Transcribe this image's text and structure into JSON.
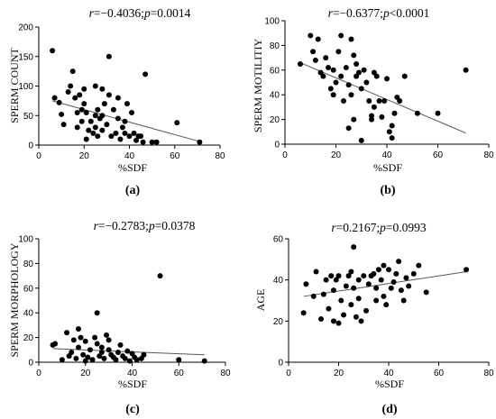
{
  "chart_data": [
    {
      "type": "scatter",
      "panel_label": "(a)",
      "stat": "r=−0.4036;p=0.0014",
      "stat_parts": {
        "r_value": "=−0.4036;",
        "p_value": "=0.0014"
      },
      "xlabel": "%SDF",
      "ylabel": "SPERM COUNT",
      "xlim": [
        0,
        80
      ],
      "ylim": [
        0,
        200
      ],
      "xticks": [
        "0",
        "20",
        "40",
        "60",
        "80"
      ],
      "yticks": [
        "0",
        "50",
        "100",
        "150",
        "200"
      ],
      "trend_line": [
        [
          6,
          75
        ],
        [
          71,
          6
        ]
      ],
      "points": [
        [
          6,
          160
        ],
        [
          7,
          80
        ],
        [
          9,
          72
        ],
        [
          10,
          52
        ],
        [
          11,
          35
        ],
        [
          13,
          90
        ],
        [
          14,
          100
        ],
        [
          15,
          125
        ],
        [
          16,
          80
        ],
        [
          17,
          55
        ],
        [
          17,
          30
        ],
        [
          18,
          85
        ],
        [
          19,
          60
        ],
        [
          19,
          40
        ],
        [
          20,
          70
        ],
        [
          20,
          95
        ],
        [
          21,
          55
        ],
        [
          21,
          10
        ],
        [
          22,
          25
        ],
        [
          23,
          40
        ],
        [
          24,
          20
        ],
        [
          25,
          100
        ],
        [
          25,
          50
        ],
        [
          25,
          30
        ],
        [
          26,
          60
        ],
        [
          26,
          15
        ],
        [
          27,
          45
        ],
        [
          28,
          95
        ],
        [
          28,
          50
        ],
        [
          28,
          25
        ],
        [
          29,
          70
        ],
        [
          30,
          35
        ],
        [
          31,
          150
        ],
        [
          31,
          85
        ],
        [
          32,
          15
        ],
        [
          33,
          60
        ],
        [
          34,
          20
        ],
        [
          35,
          80
        ],
        [
          35,
          45
        ],
        [
          36,
          10
        ],
        [
          37,
          30
        ],
        [
          38,
          40
        ],
        [
          38,
          20
        ],
        [
          39,
          70
        ],
        [
          40,
          15
        ],
        [
          41,
          55
        ],
        [
          42,
          20
        ],
        [
          43,
          8
        ],
        [
          44,
          15
        ],
        [
          45,
          15
        ],
        [
          46,
          5
        ],
        [
          47,
          120
        ],
        [
          50,
          5
        ],
        [
          52,
          5
        ],
        [
          61,
          38
        ],
        [
          71,
          5
        ]
      ]
    },
    {
      "type": "scatter",
      "panel_label": "(b)",
      "stat": "r=−0.6377;p<0.0001",
      "stat_parts": {
        "r_value": "=−0.6377;",
        "p_value": "<0.0001"
      },
      "xlabel": "%SDF",
      "ylabel": "SPERM MOTILITIY",
      "xlim": [
        0,
        80
      ],
      "ylim": [
        0,
        100
      ],
      "xticks": [
        "0",
        "20",
        "40",
        "60",
        "80"
      ],
      "yticks": [
        "0",
        "20",
        "40",
        "60",
        "80",
        "100"
      ],
      "trend_line": [
        [
          6,
          66
        ],
        [
          71,
          9
        ]
      ],
      "points": [
        [
          6,
          65
        ],
        [
          10,
          88
        ],
        [
          11,
          75
        ],
        [
          12,
          68
        ],
        [
          13,
          85
        ],
        [
          14,
          58
        ],
        [
          15,
          55
        ],
        [
          16,
          70
        ],
        [
          17,
          62
        ],
        [
          18,
          45
        ],
        [
          19,
          60
        ],
        [
          19,
          40
        ],
        [
          20,
          50
        ],
        [
          21,
          75
        ],
        [
          22,
          88
        ],
        [
          22,
          55
        ],
        [
          23,
          35
        ],
        [
          24,
          62
        ],
        [
          25,
          48
        ],
        [
          25,
          13
        ],
        [
          26,
          85
        ],
        [
          26,
          40
        ],
        [
          27,
          72
        ],
        [
          27,
          20
        ],
        [
          28,
          65
        ],
        [
          28,
          55
        ],
        [
          29,
          58
        ],
        [
          30,
          45
        ],
        [
          30,
          3
        ],
        [
          31,
          60
        ],
        [
          32,
          50
        ],
        [
          33,
          35
        ],
        [
          34,
          23
        ],
        [
          34,
          20
        ],
        [
          35,
          30
        ],
        [
          35,
          58
        ],
        [
          36,
          55
        ],
        [
          37,
          35
        ],
        [
          38,
          22
        ],
        [
          39,
          35
        ],
        [
          40,
          53
        ],
        [
          41,
          10
        ],
        [
          42,
          5
        ],
        [
          42,
          15
        ],
        [
          43,
          25
        ],
        [
          44,
          38
        ],
        [
          45,
          35
        ],
        [
          47,
          55
        ],
        [
          52,
          25
        ],
        [
          60,
          25
        ],
        [
          71,
          60
        ]
      ]
    },
    {
      "type": "scatter",
      "panel_label": "(c)",
      "stat": "r=−0.2783;p=0.0378",
      "stat_parts": {
        "r_value": "=−0.2783;",
        "p_value": "=0.0378"
      },
      "xlabel": "%SDF",
      "ylabel": "SPERM MORPHOLOGY",
      "xlim": [
        0,
        80
      ],
      "ylim": [
        0,
        100
      ],
      "xticks": [
        "0",
        "20",
        "40",
        "60",
        "80"
      ],
      "yticks": [
        "0",
        "20",
        "40",
        "60",
        "80",
        "100"
      ],
      "trend_line": [
        [
          6,
          11
        ],
        [
          71,
          6
        ]
      ],
      "points": [
        [
          6,
          14
        ],
        [
          7,
          15
        ],
        [
          10,
          2
        ],
        [
          12,
          24
        ],
        [
          13,
          5
        ],
        [
          14,
          8
        ],
        [
          15,
          18
        ],
        [
          16,
          3
        ],
        [
          17,
          27
        ],
        [
          17,
          12
        ],
        [
          18,
          20
        ],
        [
          19,
          6
        ],
        [
          20,
          17
        ],
        [
          20,
          1
        ],
        [
          21,
          4
        ],
        [
          22,
          10
        ],
        [
          23,
          2
        ],
        [
          24,
          20
        ],
        [
          25,
          40
        ],
        [
          25,
          15
        ],
        [
          26,
          5
        ],
        [
          27,
          12
        ],
        [
          27,
          8
        ],
        [
          28,
          3
        ],
        [
          29,
          22
        ],
        [
          30,
          18
        ],
        [
          30,
          10
        ],
        [
          31,
          6
        ],
        [
          32,
          4
        ],
        [
          33,
          2
        ],
        [
          34,
          8
        ],
        [
          35,
          14
        ],
        [
          36,
          5
        ],
        [
          37,
          3
        ],
        [
          38,
          9
        ],
        [
          39,
          1
        ],
        [
          40,
          7
        ],
        [
          41,
          4
        ],
        [
          42,
          2
        ],
        [
          44,
          3
        ],
        [
          45,
          6
        ],
        [
          52,
          70
        ],
        [
          60,
          2
        ],
        [
          71,
          1
        ]
      ]
    },
    {
      "type": "scatter",
      "panel_label": "(d)",
      "stat": "r=0.2167;p=0.0993",
      "stat_parts": {
        "r_value": "=0.2167;",
        "p_value": "=0.0993"
      },
      "xlabel": "%SDF",
      "ylabel": "AGE",
      "xlim": [
        0,
        80
      ],
      "ylim": [
        0,
        60
      ],
      "xticks": [
        "0",
        "20",
        "40",
        "60",
        "80"
      ],
      "yticks": [
        "0",
        "20",
        "40",
        "60"
      ],
      "trend_line": [
        [
          6,
          32
        ],
        [
          71,
          44
        ]
      ],
      "points": [
        [
          6,
          24
        ],
        [
          7,
          38
        ],
        [
          10,
          32
        ],
        [
          11,
          44
        ],
        [
          13,
          21
        ],
        [
          14,
          33
        ],
        [
          15,
          40
        ],
        [
          16,
          26
        ],
        [
          17,
          42
        ],
        [
          18,
          20
        ],
        [
          18,
          35
        ],
        [
          19,
          40
        ],
        [
          20,
          42
        ],
        [
          20,
          19
        ],
        [
          21,
          30
        ],
        [
          22,
          23
        ],
        [
          23,
          37
        ],
        [
          24,
          42
        ],
        [
          25,
          44
        ],
        [
          25,
          28
        ],
        [
          26,
          56
        ],
        [
          26,
          36
        ],
        [
          27,
          22
        ],
        [
          28,
          40
        ],
        [
          28,
          31
        ],
        [
          29,
          20
        ],
        [
          30,
          42
        ],
        [
          31,
          25
        ],
        [
          32,
          38
        ],
        [
          33,
          42
        ],
        [
          34,
          43
        ],
        [
          35,
          36
        ],
        [
          35,
          30
        ],
        [
          36,
          45
        ],
        [
          37,
          40
        ],
        [
          38,
          32
        ],
        [
          38,
          47
        ],
        [
          39,
          28
        ],
        [
          40,
          45
        ],
        [
          41,
          36
        ],
        [
          42,
          39
        ],
        [
          43,
          43
        ],
        [
          44,
          49
        ],
        [
          45,
          35
        ],
        [
          46,
          30
        ],
        [
          47,
          41
        ],
        [
          48,
          37
        ],
        [
          50,
          43
        ],
        [
          52,
          47
        ],
        [
          55,
          34
        ],
        [
          71,
          45
        ]
      ]
    }
  ]
}
